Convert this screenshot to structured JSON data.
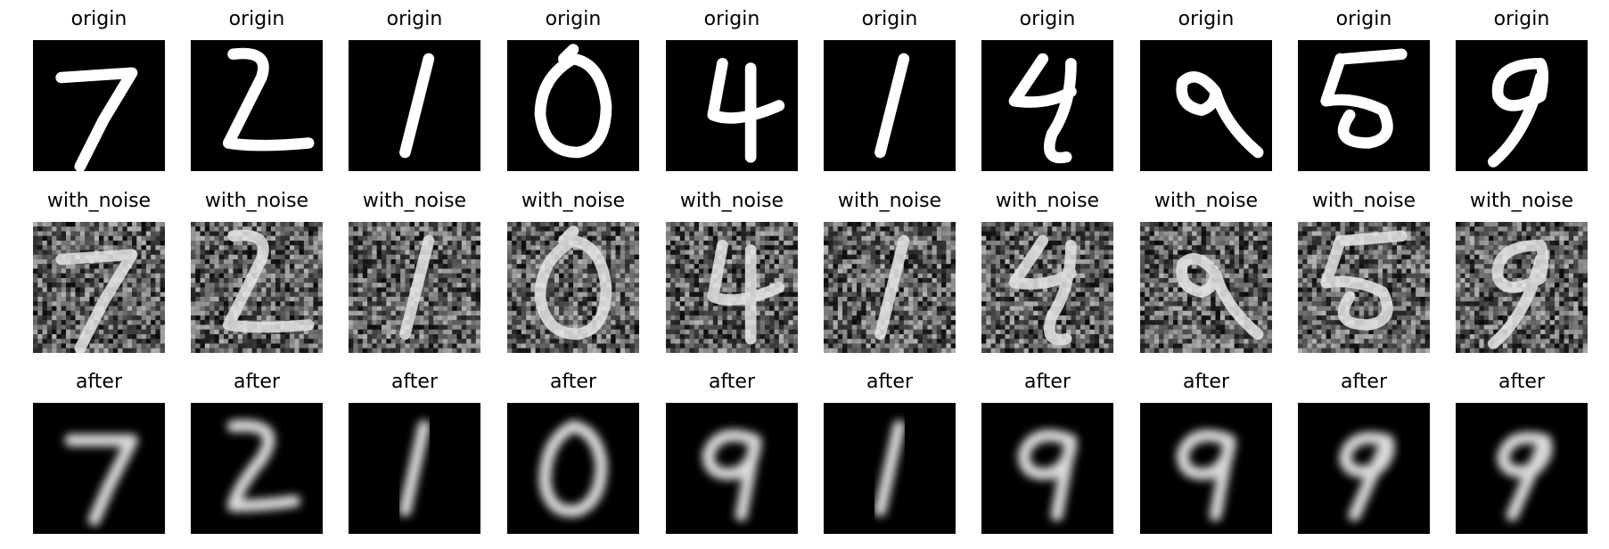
{
  "rows": [
    {
      "title": "origin",
      "style": "sharp",
      "digits": [
        "7",
        "2",
        "1",
        "0",
        "4",
        "1",
        "4",
        "9",
        "5",
        "9"
      ]
    },
    {
      "title": "with_noise",
      "style": "noisy",
      "digits": [
        "7",
        "2",
        "1",
        "0",
        "4",
        "1",
        "4",
        "9",
        "5",
        "9"
      ]
    },
    {
      "title": "after",
      "style": "blurred",
      "digits": [
        "7",
        "2",
        "1",
        "0",
        "9",
        "1",
        "9",
        "9",
        "9",
        "9"
      ]
    }
  ],
  "colors": {
    "background": "#000000",
    "stroke": "#ffffff",
    "title": "#000000"
  }
}
